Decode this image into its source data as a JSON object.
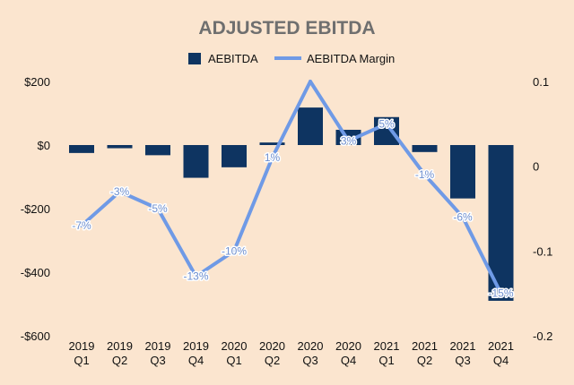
{
  "chart_data": {
    "type": "bar",
    "title": "ADJUSTED EBITDA",
    "categories": [
      [
        "2019",
        "Q1"
      ],
      [
        "2019",
        "Q2"
      ],
      [
        "2019",
        "Q3"
      ],
      [
        "2019",
        "Q4"
      ],
      [
        "2020",
        "Q1"
      ],
      [
        "2020",
        "Q2"
      ],
      [
        "2020",
        "Q3"
      ],
      [
        "2020",
        "Q4"
      ],
      [
        "2021",
        "Q1"
      ],
      [
        "2021",
        "Q2"
      ],
      [
        "2021",
        "Q3"
      ],
      [
        "2021",
        "Q4"
      ]
    ],
    "series": [
      {
        "name": "AEBITDA",
        "type": "bar",
        "axis": "left",
        "color": "#0e3461",
        "values": [
          -25,
          -10,
          -32,
          -103,
          -70,
          8,
          118,
          48,
          88,
          -22,
          -168,
          -490
        ]
      },
      {
        "name": "AEBITDA Margin",
        "type": "line",
        "axis": "right",
        "color": "#6f9ae6",
        "values": [
          -0.07,
          -0.03,
          -0.05,
          -0.13,
          -0.1,
          0.01,
          0.1,
          0.03,
          0.05,
          -0.01,
          -0.06,
          -0.15
        ],
        "labels": [
          "-7%",
          "-3%",
          "-5%",
          "-13%",
          "-10%",
          "1%",
          "",
          "3%",
          "5%",
          "-1%",
          "-6%",
          "-15%"
        ]
      }
    ],
    "left_axis": {
      "ylim": [
        -600,
        200
      ],
      "ticks": [
        200,
        0,
        -200,
        -400,
        -600
      ],
      "tick_labels": [
        "$200",
        "$0",
        "-$200",
        "-$400",
        "-$600"
      ]
    },
    "right_axis": {
      "ylim": [
        -0.2,
        0.1
      ],
      "ticks": [
        0.1,
        0,
        -0.1,
        -0.2
      ],
      "tick_labels": [
        "0.1",
        "0",
        "-0.1",
        "-0.2"
      ]
    },
    "grid": false,
    "legend": {
      "position": "top-center",
      "items": [
        "AEBITDA",
        "AEBITDA Margin"
      ]
    },
    "background": "#fbe5cf"
  }
}
